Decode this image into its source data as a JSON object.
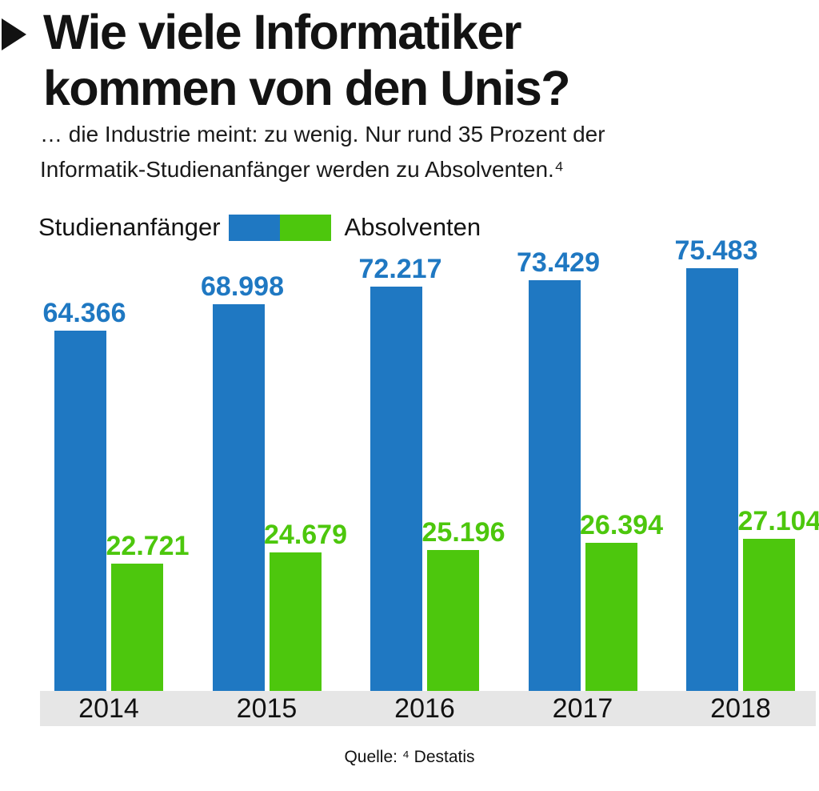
{
  "header": {
    "title_line1": "Wie viele Informatiker",
    "title_line2": "kommen von den Unis?",
    "subtitle_line1": "… die Industrie meint: zu wenig. Nur rund 35 Prozent der",
    "subtitle_line2": "Informatik-Studienanfänger werden zu Absolventen.⁴"
  },
  "legend": {
    "left_label": "Studienanfänger",
    "right_label": "Absolventen"
  },
  "colors": {
    "blue": "#1F78C2",
    "green": "#4DC70D",
    "band_gray": "#E6E6E6"
  },
  "chart_data": {
    "type": "bar",
    "categories": [
      "2014",
      "2015",
      "2016",
      "2017",
      "2018"
    ],
    "series": [
      {
        "name": "Studienanfänger",
        "key": "studienanfaenger",
        "color": "#1F78C2",
        "values": [
          64366,
          68998,
          72217,
          73429,
          75483
        ],
        "labels": [
          "64.366",
          "68.998",
          "72.217",
          "73.429",
          "75.483"
        ]
      },
      {
        "name": "Absolventen",
        "key": "absolventen",
        "color": "#4DC70D",
        "values": [
          22721,
          24679,
          25196,
          26394,
          27104
        ],
        "labels": [
          "22.721",
          "24.679",
          "25.196",
          "26.394",
          "27.104"
        ]
      }
    ],
    "ylim": [
      0,
      75483
    ],
    "grid": false,
    "legend_position": "top-left",
    "value_labels": "above-bars"
  },
  "source": {
    "text": "Quelle: ⁴ Destatis"
  }
}
